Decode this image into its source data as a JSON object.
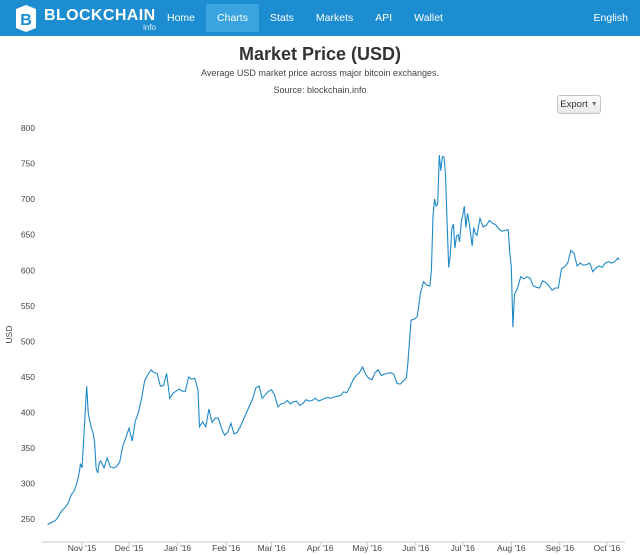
{
  "nav": {
    "brand": "BLOCKCHAIN",
    "brand_sub": "info",
    "items": [
      {
        "label": "Home"
      },
      {
        "label": "Charts",
        "active": true
      },
      {
        "label": "Stats"
      },
      {
        "label": "Markets"
      },
      {
        "label": "API"
      },
      {
        "label": "Wallet"
      }
    ],
    "language": "English"
  },
  "header": {
    "title": "Market Price (USD)",
    "subtitle": "Average USD market price across major bitcoin exchanges.",
    "source": "Source: blockchain.info",
    "export_label": "Export"
  },
  "colors": {
    "nav_bg": "#1c8dd0",
    "nav_active": "#3aa3e0",
    "line": "#1f8ac7"
  },
  "chart_data": {
    "type": "line",
    "ylabel": "USD",
    "ylim": [
      225,
      800
    ],
    "yticks": [
      250,
      300,
      350,
      400,
      450,
      500,
      550,
      600,
      650,
      700,
      750,
      800
    ],
    "xlim": [
      "2015-10-09",
      "2016-10-10"
    ],
    "xticks": [
      {
        "label": "Nov '15",
        "date": "2015-11-01"
      },
      {
        "label": "Dec '15",
        "date": "2015-12-01"
      },
      {
        "label": "Jan '16",
        "date": "2016-01-01"
      },
      {
        "label": "Feb '16",
        "date": "2016-02-01"
      },
      {
        "label": "Mar '16",
        "date": "2016-03-01"
      },
      {
        "label": "Apr '16",
        "date": "2016-04-01"
      },
      {
        "label": "May '16",
        "date": "2016-05-01"
      },
      {
        "label": "Jun '16",
        "date": "2016-06-01"
      },
      {
        "label": "Jul '16",
        "date": "2016-07-01"
      },
      {
        "label": "Aug '16",
        "date": "2016-08-01"
      },
      {
        "label": "Sep '16",
        "date": "2016-09-01"
      },
      {
        "label": "Oct '16",
        "date": "2016-10-01"
      }
    ],
    "series": [
      {
        "points": [
          [
            "2015-10-10",
            242
          ],
          [
            "2015-10-11",
            244
          ],
          [
            "2015-10-13",
            246
          ],
          [
            "2015-10-15",
            248
          ],
          [
            "2015-10-17",
            254
          ],
          [
            "2015-10-19",
            262
          ],
          [
            "2015-10-21",
            266
          ],
          [
            "2015-10-23",
            272
          ],
          [
            "2015-10-25",
            284
          ],
          [
            "2015-10-27",
            290
          ],
          [
            "2015-10-29",
            303
          ],
          [
            "2015-10-30",
            313
          ],
          [
            "2015-10-31",
            328
          ],
          [
            "2015-11-01",
            322
          ],
          [
            "2015-11-02",
            360
          ],
          [
            "2015-11-03",
            400
          ],
          [
            "2015-11-04",
            437
          ],
          [
            "2015-11-05",
            398
          ],
          [
            "2015-11-06",
            388
          ],
          [
            "2015-11-07",
            378
          ],
          [
            "2015-11-08",
            372
          ],
          [
            "2015-11-09",
            358
          ],
          [
            "2015-11-10",
            322
          ],
          [
            "2015-11-11",
            315
          ],
          [
            "2015-11-12",
            330
          ],
          [
            "2015-11-13",
            332
          ],
          [
            "2015-11-15",
            322
          ],
          [
            "2015-11-17",
            336
          ],
          [
            "2015-11-19",
            324
          ],
          [
            "2015-11-21",
            322
          ],
          [
            "2015-11-23",
            324
          ],
          [
            "2015-11-25",
            330
          ],
          [
            "2015-11-27",
            353
          ],
          [
            "2015-11-29",
            365
          ],
          [
            "2015-12-01",
            378
          ],
          [
            "2015-12-03",
            360
          ],
          [
            "2015-12-05",
            388
          ],
          [
            "2015-12-07",
            400
          ],
          [
            "2015-12-09",
            420
          ],
          [
            "2015-12-11",
            445
          ],
          [
            "2015-12-13",
            453
          ],
          [
            "2015-12-15",
            460
          ],
          [
            "2015-12-17",
            456
          ],
          [
            "2015-12-19",
            455
          ],
          [
            "2015-12-21",
            437
          ],
          [
            "2015-12-23",
            438
          ],
          [
            "2015-12-25",
            455
          ],
          [
            "2015-12-27",
            420
          ],
          [
            "2015-12-29",
            427
          ],
          [
            "2015-12-31",
            430
          ],
          [
            "2016-01-02",
            433
          ],
          [
            "2016-01-04",
            430
          ],
          [
            "2016-01-06",
            430
          ],
          [
            "2016-01-08",
            450
          ],
          [
            "2016-01-10",
            447
          ],
          [
            "2016-01-12",
            448
          ],
          [
            "2016-01-14",
            432
          ],
          [
            "2016-01-15",
            380
          ],
          [
            "2016-01-17",
            387
          ],
          [
            "2016-01-19",
            380
          ],
          [
            "2016-01-21",
            405
          ],
          [
            "2016-01-23",
            386
          ],
          [
            "2016-01-25",
            392
          ],
          [
            "2016-01-27",
            392
          ],
          [
            "2016-01-29",
            378
          ],
          [
            "2016-01-31",
            368
          ],
          [
            "2016-02-02",
            372
          ],
          [
            "2016-02-04",
            385
          ],
          [
            "2016-02-06",
            370
          ],
          [
            "2016-02-08",
            372
          ],
          [
            "2016-02-10",
            380
          ],
          [
            "2016-02-12",
            390
          ],
          [
            "2016-02-14",
            400
          ],
          [
            "2016-02-16",
            410
          ],
          [
            "2016-02-18",
            420
          ],
          [
            "2016-02-20",
            435
          ],
          [
            "2016-02-22",
            437
          ],
          [
            "2016-02-24",
            420
          ],
          [
            "2016-02-26",
            425
          ],
          [
            "2016-02-28",
            430
          ],
          [
            "2016-03-01",
            432
          ],
          [
            "2016-03-03",
            424
          ],
          [
            "2016-03-05",
            408
          ],
          [
            "2016-03-07",
            412
          ],
          [
            "2016-03-09",
            413
          ],
          [
            "2016-03-11",
            417
          ],
          [
            "2016-03-13",
            412
          ],
          [
            "2016-03-15",
            415
          ],
          [
            "2016-03-17",
            416
          ],
          [
            "2016-03-19",
            410
          ],
          [
            "2016-03-21",
            413
          ],
          [
            "2016-03-23",
            418
          ],
          [
            "2016-03-25",
            416
          ],
          [
            "2016-03-27",
            417
          ],
          [
            "2016-03-29",
            420
          ],
          [
            "2016-03-31",
            416
          ],
          [
            "2016-04-02",
            418
          ],
          [
            "2016-04-04",
            420
          ],
          [
            "2016-04-06",
            421
          ],
          [
            "2016-04-08",
            420
          ],
          [
            "2016-04-10",
            422
          ],
          [
            "2016-04-12",
            423
          ],
          [
            "2016-04-14",
            424
          ],
          [
            "2016-04-16",
            429
          ],
          [
            "2016-04-18",
            428
          ],
          [
            "2016-04-20",
            436
          ],
          [
            "2016-04-22",
            446
          ],
          [
            "2016-04-24",
            452
          ],
          [
            "2016-04-26",
            456
          ],
          [
            "2016-04-28",
            464
          ],
          [
            "2016-04-30",
            454
          ],
          [
            "2016-05-02",
            448
          ],
          [
            "2016-05-04",
            446
          ],
          [
            "2016-05-06",
            456
          ],
          [
            "2016-05-08",
            460
          ],
          [
            "2016-05-10",
            452
          ],
          [
            "2016-05-12",
            454
          ],
          [
            "2016-05-14",
            455
          ],
          [
            "2016-05-16",
            456
          ],
          [
            "2016-05-18",
            454
          ],
          [
            "2016-05-20",
            441
          ],
          [
            "2016-05-22",
            440
          ],
          [
            "2016-05-24",
            444
          ],
          [
            "2016-05-26",
            449
          ],
          [
            "2016-05-27",
            470
          ],
          [
            "2016-05-28",
            500
          ],
          [
            "2016-05-29",
            530
          ],
          [
            "2016-05-31",
            531
          ],
          [
            "2016-06-02",
            535
          ],
          [
            "2016-06-04",
            568
          ],
          [
            "2016-06-06",
            584
          ],
          [
            "2016-06-08",
            579
          ],
          [
            "2016-06-10",
            578
          ],
          [
            "2016-06-11",
            600
          ],
          [
            "2016-06-12",
            676
          ],
          [
            "2016-06-13",
            700
          ],
          [
            "2016-06-14",
            690
          ],
          [
            "2016-06-15",
            693
          ],
          [
            "2016-06-16",
            762
          ],
          [
            "2016-06-17",
            740
          ],
          [
            "2016-06-18",
            760
          ],
          [
            "2016-06-19",
            759
          ],
          [
            "2016-06-20",
            735
          ],
          [
            "2016-06-21",
            667
          ],
          [
            "2016-06-22",
            604
          ],
          [
            "2016-06-23",
            620
          ],
          [
            "2016-06-24",
            658
          ],
          [
            "2016-06-25",
            665
          ],
          [
            "2016-06-26",
            631
          ],
          [
            "2016-06-27",
            648
          ],
          [
            "2016-06-28",
            650
          ],
          [
            "2016-06-29",
            640
          ],
          [
            "2016-06-30",
            667
          ],
          [
            "2016-07-01",
            678
          ],
          [
            "2016-07-02",
            690
          ],
          [
            "2016-07-03",
            660
          ],
          [
            "2016-07-04",
            680
          ],
          [
            "2016-07-05",
            668
          ],
          [
            "2016-07-07",
            634
          ],
          [
            "2016-07-08",
            660
          ],
          [
            "2016-07-09",
            652
          ],
          [
            "2016-07-10",
            649
          ],
          [
            "2016-07-12",
            673
          ],
          [
            "2016-07-14",
            661
          ],
          [
            "2016-07-16",
            663
          ],
          [
            "2016-07-18",
            670
          ],
          [
            "2016-07-20",
            666
          ],
          [
            "2016-07-22",
            664
          ],
          [
            "2016-07-24",
            658
          ],
          [
            "2016-07-26",
            655
          ],
          [
            "2016-07-28",
            656
          ],
          [
            "2016-07-30",
            657
          ],
          [
            "2016-07-31",
            624
          ],
          [
            "2016-08-01",
            605
          ],
          [
            "2016-08-02",
            520
          ],
          [
            "2016-08-03",
            566
          ],
          [
            "2016-08-05",
            575
          ],
          [
            "2016-08-07",
            591
          ],
          [
            "2016-08-09",
            588
          ],
          [
            "2016-08-11",
            591
          ],
          [
            "2016-08-13",
            589
          ],
          [
            "2016-08-15",
            578
          ],
          [
            "2016-08-17",
            576
          ],
          [
            "2016-08-19",
            575
          ],
          [
            "2016-08-21",
            585
          ],
          [
            "2016-08-23",
            583
          ],
          [
            "2016-08-25",
            578
          ],
          [
            "2016-08-27",
            572
          ],
          [
            "2016-08-29",
            575
          ],
          [
            "2016-08-31",
            575
          ],
          [
            "2016-09-02",
            602
          ],
          [
            "2016-09-04",
            605
          ],
          [
            "2016-09-06",
            610
          ],
          [
            "2016-09-08",
            628
          ],
          [
            "2016-09-10",
            624
          ],
          [
            "2016-09-12",
            606
          ],
          [
            "2016-09-14",
            610
          ],
          [
            "2016-09-16",
            607
          ],
          [
            "2016-09-18",
            608
          ],
          [
            "2016-09-20",
            610
          ],
          [
            "2016-09-22",
            598
          ],
          [
            "2016-09-24",
            603
          ],
          [
            "2016-09-26",
            606
          ],
          [
            "2016-09-28",
            604
          ],
          [
            "2016-09-30",
            610
          ],
          [
            "2016-10-02",
            612
          ],
          [
            "2016-10-04",
            610
          ],
          [
            "2016-10-06",
            612
          ],
          [
            "2016-10-08",
            617
          ],
          [
            "2016-10-09",
            615
          ]
        ]
      }
    ]
  }
}
